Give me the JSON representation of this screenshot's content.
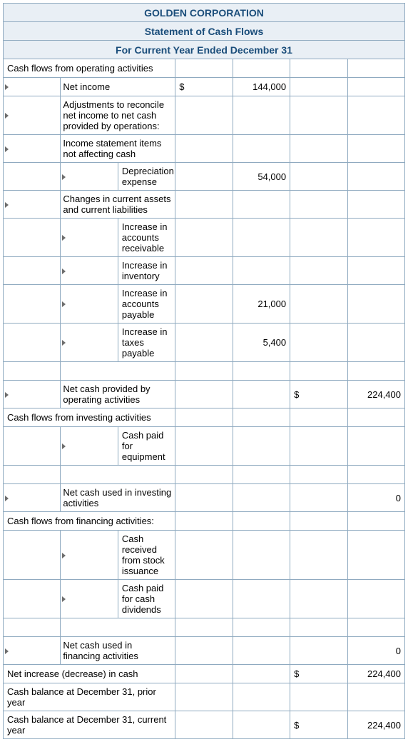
{
  "header": {
    "company": "GOLDEN CORPORATION",
    "title": "Statement of Cash Flows",
    "period": "For Current Year Ended December 31"
  },
  "rows": [
    {
      "indent": 0,
      "label": "Cash flows from operating activities",
      "sym1": "",
      "val1": "",
      "sym2": "",
      "val2": ""
    },
    {
      "indent": 1,
      "label": "Net income",
      "sym1": "$",
      "val1": "144,000",
      "sym2": "",
      "val2": ""
    },
    {
      "indent": 1,
      "label": "Adjustments to reconcile net income to net cash provided by operations:",
      "sym1": "",
      "val1": "",
      "sym2": "",
      "val2": ""
    },
    {
      "indent": 1,
      "label": "Income statement items not affecting cash",
      "sym1": "",
      "val1": "",
      "sym2": "",
      "val2": ""
    },
    {
      "indent": 2,
      "label": "Depreciation expense",
      "sym1": "",
      "val1": "54,000",
      "sym2": "",
      "val2": ""
    },
    {
      "indent": 1,
      "label": "Changes in current assets and current liabilities",
      "sym1": "",
      "val1": "",
      "sym2": "",
      "val2": ""
    },
    {
      "indent": 2,
      "label": "Increase in accounts receivable",
      "sym1": "",
      "val1": "",
      "sym2": "",
      "val2": ""
    },
    {
      "indent": 2,
      "label": "Increase in inventory",
      "sym1": "",
      "val1": "",
      "sym2": "",
      "val2": ""
    },
    {
      "indent": 2,
      "label": "Increase in accounts payable",
      "sym1": "",
      "val1": "21,000",
      "sym2": "",
      "val2": ""
    },
    {
      "indent": 2,
      "label": "Increase in taxes payable",
      "sym1": "",
      "val1": "5,400",
      "sym2": "",
      "val2": ""
    },
    {
      "indent": 1,
      "label": "",
      "sym1": "",
      "val1": "",
      "sym2": "",
      "val2": "",
      "blank": true
    },
    {
      "indent": 1,
      "label": "Net cash provided by operating activities",
      "sym1": "",
      "val1": "",
      "sym2": "$",
      "val2": "224,400"
    },
    {
      "indent": 0,
      "label": "Cash flows from investing activities",
      "sym1": "",
      "val1": "",
      "sym2": "",
      "val2": "",
      "dotted": true
    },
    {
      "indent": 2,
      "label": "Cash paid for equipment",
      "sym1": "",
      "val1": "",
      "sym2": "",
      "val2": ""
    },
    {
      "indent": 1,
      "label": "",
      "sym1": "",
      "val1": "",
      "sym2": "",
      "val2": "",
      "blank": true
    },
    {
      "indent": 1,
      "label": "Net cash used in investing activities",
      "sym1": "",
      "val1": "",
      "sym2": "",
      "val2": "0"
    },
    {
      "indent": 0,
      "label": "Cash flows from financing activities:",
      "sym1": "",
      "val1": "",
      "sym2": "",
      "val2": ""
    },
    {
      "indent": 2,
      "label": "Cash received from stock issuance",
      "sym1": "",
      "val1": "",
      "sym2": "",
      "val2": ""
    },
    {
      "indent": 2,
      "label": "Cash paid for cash dividends",
      "sym1": "",
      "val1": "",
      "sym2": "",
      "val2": ""
    },
    {
      "indent": 1,
      "label": "",
      "sym1": "",
      "val1": "",
      "sym2": "",
      "val2": "",
      "blank": true
    },
    {
      "indent": 1,
      "label": "Net cash used in financing activities",
      "sym1": "",
      "val1": "",
      "sym2": "",
      "val2": "0"
    },
    {
      "indent": 0,
      "label": "Net increase (decrease) in cash",
      "sym1": "",
      "val1": "",
      "sym2": "$",
      "val2": "224,400"
    },
    {
      "indent": 0,
      "label": "Cash balance at December 31, prior year",
      "sym1": "",
      "val1": "",
      "sym2": "",
      "val2": ""
    },
    {
      "indent": 0,
      "label": "Cash balance at December 31, current year",
      "sym1": "",
      "val1": "",
      "sym2": "$",
      "val2": "224,400"
    }
  ],
  "colors": {
    "border": "#8faac0",
    "header_bg": "#e9eff5",
    "header_text": "#1a4d7a",
    "triangle": "#6d6d6d",
    "dotted": "#3a6ea5"
  }
}
